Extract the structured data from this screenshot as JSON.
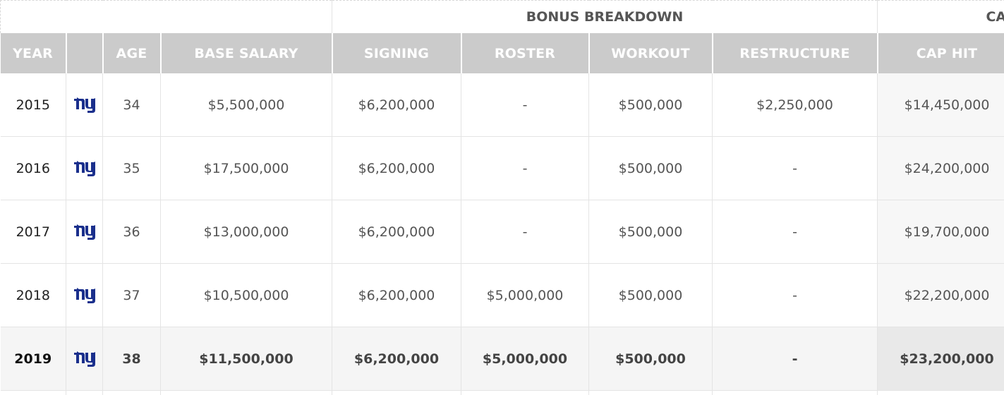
{
  "colors": {
    "header_bg": "#cbcbcb",
    "team_blue": "#1a2f8c"
  },
  "group_headers": {
    "bonus_breakdown": "BONUS BREAKDOWN",
    "cap": "CAP"
  },
  "columns": [
    "YEAR",
    "",
    "AGE",
    "BASE SALARY",
    "SIGNING",
    "ROSTER",
    "WORKOUT",
    "RESTRUCTURE",
    "CAP HIT"
  ],
  "rows": [
    {
      "year": "2015",
      "team_icon": "ny-giants-logo-icon",
      "age": "34",
      "base_salary": "$5,500,000",
      "signing": "$6,200,000",
      "roster": "-",
      "workout": "$500,000",
      "restructure": "$2,250,000",
      "cap_hit": "$14,450,000"
    },
    {
      "year": "2016",
      "team_icon": "ny-giants-logo-icon",
      "age": "35",
      "base_salary": "$17,500,000",
      "signing": "$6,200,000",
      "roster": "-",
      "workout": "$500,000",
      "restructure": "-",
      "cap_hit": "$24,200,000"
    },
    {
      "year": "2017",
      "team_icon": "ny-giants-logo-icon",
      "age": "36",
      "base_salary": "$13,000,000",
      "signing": "$6,200,000",
      "roster": "-",
      "workout": "$500,000",
      "restructure": "-",
      "cap_hit": "$19,700,000"
    },
    {
      "year": "2018",
      "team_icon": "ny-giants-logo-icon",
      "age": "37",
      "base_salary": "$10,500,000",
      "signing": "$6,200,000",
      "roster": "$5,000,000",
      "workout": "$500,000",
      "restructure": "-",
      "cap_hit": "$22,200,000"
    },
    {
      "year": "2019",
      "team_icon": "ny-giants-logo-icon",
      "age": "38",
      "base_salary": "$11,500,000",
      "signing": "$6,200,000",
      "roster": "$5,000,000",
      "workout": "$500,000",
      "restructure": "-",
      "cap_hit": "$23,200,000"
    }
  ]
}
